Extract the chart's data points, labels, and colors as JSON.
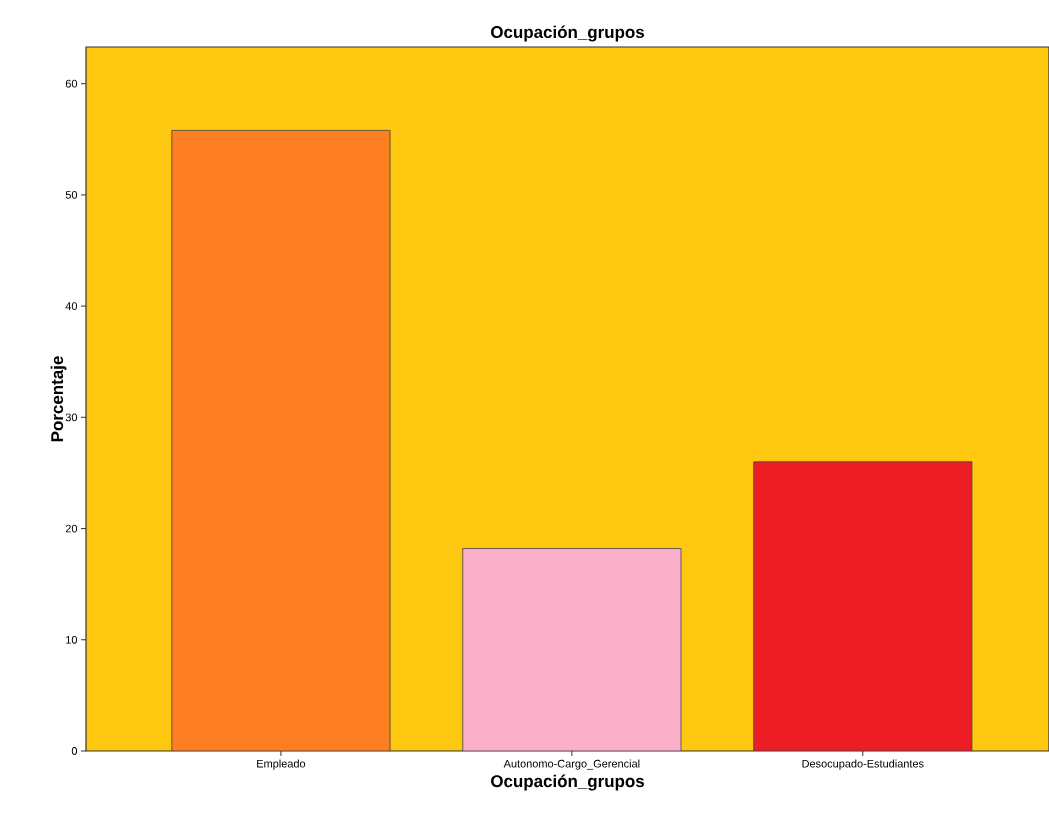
{
  "chart_data": {
    "type": "bar",
    "title": "Ocupación_grupos",
    "xlabel": "Ocupación_grupos",
    "ylabel": "Porcentaje",
    "categories": [
      "Empleado",
      "Autonomo-Cargo_Gerencial",
      "Desocupado-Estudiantes"
    ],
    "values": [
      55.8,
      18.2,
      26.0
    ],
    "colors": [
      "#fe7f22",
      "#fbb0c9",
      "#ec1d25"
    ],
    "ylim": [
      0,
      63.3
    ],
    "yticks": [
      0,
      10,
      20,
      30,
      40,
      50,
      60
    ],
    "grid": false
  }
}
